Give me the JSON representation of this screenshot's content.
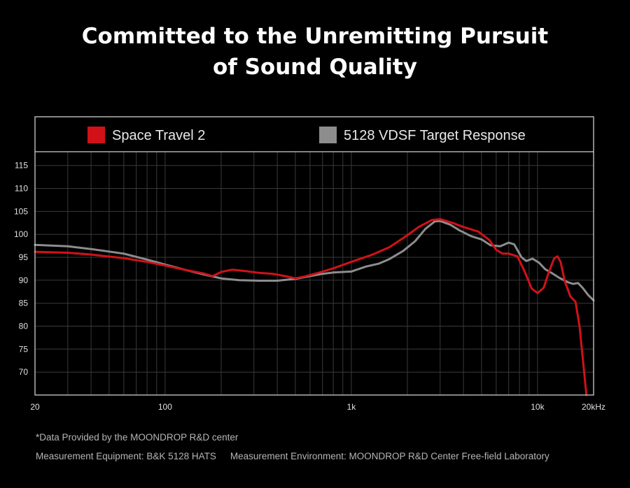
{
  "title": {
    "line1": "Committed to the Unremitting Pursuit",
    "line2": "of Sound Quality"
  },
  "colors": {
    "background": "#000000",
    "series_red": "#d01218",
    "series_gray": "#8d8d8d",
    "grid": "#3a3a3a",
    "frame": "#cfcfcf"
  },
  "chart_data": {
    "type": "line",
    "xscale": "log",
    "xlim": [
      20,
      20000
    ],
    "ylim": [
      65,
      118
    ],
    "yticks": [
      70,
      75,
      80,
      85,
      90,
      95,
      100,
      105,
      110,
      115
    ],
    "xticks": [
      {
        "value": 20,
        "label": "20"
      },
      {
        "value": 100,
        "label": "100"
      },
      {
        "value": 1000,
        "label": "1k"
      },
      {
        "value": 10000,
        "label": "10k"
      },
      {
        "value": 20000,
        "label": "20kHz"
      }
    ],
    "grid": true,
    "legend_position": "top",
    "series": [
      {
        "name": "Space Travel 2",
        "color": "#d01218",
        "points": [
          [
            20,
            96.2
          ],
          [
            30,
            96.0
          ],
          [
            40,
            95.6
          ],
          [
            60,
            94.8
          ],
          [
            80,
            94.0
          ],
          [
            100,
            93.2
          ],
          [
            130,
            92.2
          ],
          [
            160,
            91.5
          ],
          [
            180,
            90.9
          ],
          [
            200,
            91.8
          ],
          [
            230,
            92.3
          ],
          [
            270,
            92.0
          ],
          [
            320,
            91.6
          ],
          [
            380,
            91.4
          ],
          [
            440,
            90.9
          ],
          [
            500,
            90.4
          ],
          [
            560,
            90.8
          ],
          [
            650,
            91.5
          ],
          [
            800,
            92.6
          ],
          [
            1000,
            94.0
          ],
          [
            1300,
            95.6
          ],
          [
            1600,
            97.2
          ],
          [
            2000,
            99.8
          ],
          [
            2300,
            101.6
          ],
          [
            2700,
            103.1
          ],
          [
            3000,
            103.3
          ],
          [
            3500,
            102.5
          ],
          [
            4000,
            101.6
          ],
          [
            4800,
            100.6
          ],
          [
            5500,
            98.8
          ],
          [
            6000,
            96.6
          ],
          [
            6500,
            95.8
          ],
          [
            7000,
            95.8
          ],
          [
            7800,
            95.2
          ],
          [
            8500,
            92.0
          ],
          [
            9300,
            88.2
          ],
          [
            10000,
            87.2
          ],
          [
            10800,
            88.4
          ],
          [
            11500,
            91.8
          ],
          [
            12300,
            94.8
          ],
          [
            12800,
            95.2
          ],
          [
            13300,
            94.0
          ],
          [
            14000,
            89.8
          ],
          [
            15000,
            86.5
          ],
          [
            16000,
            85.3
          ],
          [
            16800,
            80.0
          ],
          [
            17600,
            72.0
          ],
          [
            18300,
            65.0
          ]
        ]
      },
      {
        "name": "5128 VDSF Target Response",
        "color": "#8d8d8d",
        "points": [
          [
            20,
            97.7
          ],
          [
            30,
            97.4
          ],
          [
            40,
            96.8
          ],
          [
            60,
            95.8
          ],
          [
            80,
            94.5
          ],
          [
            100,
            93.4
          ],
          [
            130,
            92.2
          ],
          [
            160,
            91.3
          ],
          [
            200,
            90.4
          ],
          [
            250,
            90.0
          ],
          [
            320,
            89.9
          ],
          [
            400,
            89.9
          ],
          [
            500,
            90.3
          ],
          [
            600,
            90.9
          ],
          [
            700,
            91.4
          ],
          [
            800,
            91.7
          ],
          [
            900,
            91.8
          ],
          [
            1000,
            91.9
          ],
          [
            1200,
            93.0
          ],
          [
            1400,
            93.6
          ],
          [
            1600,
            94.6
          ],
          [
            1900,
            96.4
          ],
          [
            2200,
            98.5
          ],
          [
            2500,
            101.2
          ],
          [
            2800,
            102.8
          ],
          [
            3000,
            102.9
          ],
          [
            3400,
            102.1
          ],
          [
            3800,
            100.9
          ],
          [
            4400,
            99.6
          ],
          [
            5000,
            98.9
          ],
          [
            5600,
            97.6
          ],
          [
            6300,
            97.4
          ],
          [
            7000,
            98.2
          ],
          [
            7500,
            97.8
          ],
          [
            8200,
            95.0
          ],
          [
            8700,
            94.2
          ],
          [
            9400,
            94.7
          ],
          [
            10200,
            93.8
          ],
          [
            11000,
            92.4
          ],
          [
            12000,
            91.5
          ],
          [
            13000,
            90.6
          ],
          [
            14500,
            89.6
          ],
          [
            15500,
            89.2
          ],
          [
            16500,
            89.4
          ],
          [
            17500,
            88.3
          ],
          [
            18700,
            86.8
          ],
          [
            20000,
            85.6
          ]
        ]
      }
    ]
  },
  "footnotes": {
    "line1": "*Data Provided by the MOONDROP R&D center",
    "equipment": "Measurement Equipment: B&K 5128 HATS",
    "environment": "Measurement Environment: MOONDROP R&D Center Free-field Laboratory"
  }
}
